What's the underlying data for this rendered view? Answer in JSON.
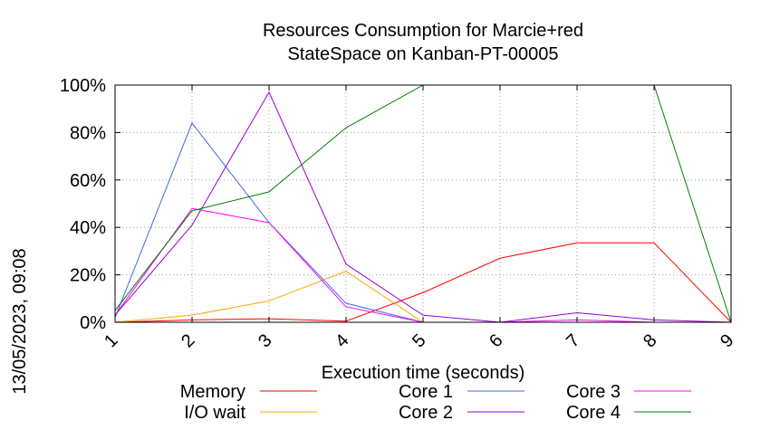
{
  "stamp": "13/05/2023, 09:08",
  "chart_data": {
    "type": "line",
    "title": "Resources Consumption for Marcie+red",
    "subtitle": "StateSpace on Kanban-PT-00005",
    "xlabel": "Execution time (seconds)",
    "ylabel": "",
    "x": [
      1,
      2,
      3,
      4,
      5,
      6,
      7,
      8,
      9
    ],
    "xlim": [
      1,
      9
    ],
    "ylim": [
      0,
      100
    ],
    "y_ticks": [
      "0%",
      "20%",
      "40%",
      "60%",
      "80%",
      "100%"
    ],
    "x_ticks": [
      "1",
      "2",
      "3",
      "4",
      "5",
      "6",
      "7",
      "8",
      "9"
    ],
    "grid": true,
    "legend_position": "bottom",
    "series": [
      {
        "name": "Memory",
        "color": "#ff0000",
        "values": [
          0,
          1,
          1.5,
          0.5,
          12.5,
          27,
          33.5,
          33.5,
          0
        ]
      },
      {
        "name": "I/O wait",
        "color": "#ffa500",
        "values": [
          0,
          3,
          9,
          21.5,
          0,
          0,
          0,
          0,
          0
        ]
      },
      {
        "name": "Core 1",
        "color": "#4169e1",
        "values": [
          2,
          84,
          42,
          8,
          0,
          0,
          0,
          0,
          0
        ]
      },
      {
        "name": "Core 2",
        "color": "#9400d3",
        "values": [
          3,
          41,
          97,
          24.5,
          3,
          0,
          4,
          1,
          0
        ]
      },
      {
        "name": "Core 3",
        "color": "#ff00ff",
        "values": [
          3,
          48,
          42,
          6.5,
          0,
          0,
          1,
          0,
          0
        ]
      },
      {
        "name": "Core 4",
        "color": "#008000",
        "values": [
          5,
          47,
          55,
          82,
          100,
          100,
          100,
          100,
          0
        ]
      }
    ]
  }
}
